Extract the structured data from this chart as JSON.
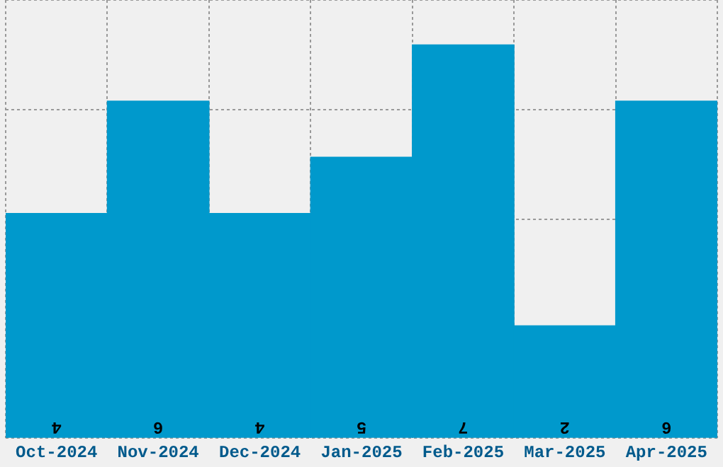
{
  "chart_data": {
    "type": "bar",
    "categories": [
      "Oct-2024",
      "Nov-2024",
      "Dec-2024",
      "Jan-2025",
      "Feb-2025",
      "Mar-2025",
      "Apr-2025"
    ],
    "values": [
      4,
      6,
      4,
      5,
      7,
      2,
      6
    ],
    "color": "#0099cc",
    "data_labels": true,
    "grid": true,
    "tick_labels": "x",
    "ylim": [
      0,
      7.8
    ]
  }
}
